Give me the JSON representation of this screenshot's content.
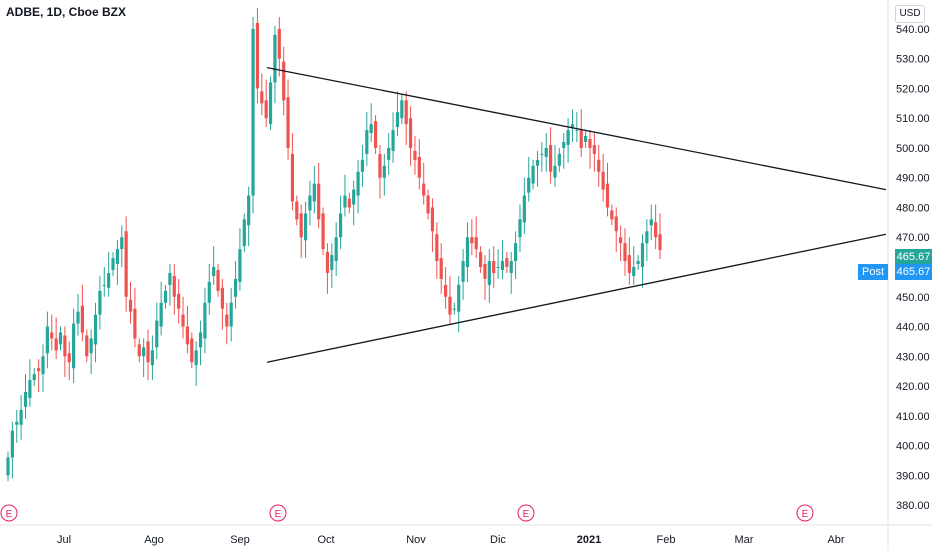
{
  "header": {
    "title": "ADBE, 1D, Cboe BZX"
  },
  "currency": "USD",
  "last_price": {
    "value": "465.67",
    "post_label": "Post",
    "post_value": "465.67",
    "color": "#26a69a",
    "post_color": "#2196f3"
  },
  "earnings_marker": "E",
  "colors": {
    "up": "#26a69a",
    "down": "#ef5350",
    "line": "#131722",
    "axis_text": "#131722",
    "earnings": "#e91e63"
  },
  "chart_data": {
    "type": "candlestick",
    "ylim": [
      375,
      545
    ],
    "y_ticks": [
      "540.00",
      "530.00",
      "520.00",
      "510.00",
      "500.00",
      "490.00",
      "480.00",
      "470.00",
      "460.00",
      "450.00",
      "440.00",
      "430.00",
      "420.00",
      "410.00",
      "400.00",
      "390.00",
      "380.00"
    ],
    "x_ticks": [
      "Jul",
      "Ago",
      "Sep",
      "Oct",
      "Nov",
      "Dic",
      "2021",
      "Feb",
      "Mar",
      "Abr"
    ],
    "earnings_after_tick": [
      "Jul",
      "Sep",
      "Dic",
      "Mar"
    ],
    "trendlines": [
      {
        "name": "upper",
        "from": {
          "x_tick": "Sep",
          "y": 527
        },
        "to": {
          "x_tick": "Abr",
          "y": 486
        }
      },
      {
        "name": "lower",
        "from": {
          "x_tick": "Sep",
          "y": 428
        },
        "to": {
          "x_tick": "Abr",
          "y": 471
        }
      }
    ],
    "close": [
      396,
      405,
      408,
      412,
      418,
      422,
      424,
      425,
      430,
      440,
      436,
      432,
      438,
      430,
      428,
      441,
      445,
      438,
      430,
      436,
      444,
      452,
      454,
      458,
      463,
      466,
      470,
      450,
      445,
      436,
      430,
      433,
      428,
      432,
      442,
      448,
      452,
      458,
      450,
      446,
      440,
      434,
      428,
      432,
      438,
      448,
      455,
      460,
      452,
      446,
      440,
      448,
      456,
      466,
      476,
      484,
      540,
      520,
      515,
      510,
      522,
      538,
      530,
      516,
      500,
      482,
      476,
      470,
      478,
      484,
      488,
      476,
      466,
      458,
      464,
      470,
      478,
      484,
      480,
      486,
      492,
      496,
      506,
      508,
      500,
      490,
      494,
      500,
      506,
      512,
      516,
      508,
      500,
      496,
      490,
      484,
      478,
      472,
      462,
      456,
      450,
      444,
      446,
      454,
      462,
      470,
      468,
      466,
      460,
      456,
      462,
      458,
      460,
      462,
      460,
      462,
      468,
      476,
      484,
      490,
      494,
      496,
      498,
      500,
      492,
      494,
      498,
      502,
      506,
      508,
      506,
      500,
      504,
      500,
      498,
      492,
      486,
      480,
      476,
      472,
      468,
      462,
      458,
      460,
      462,
      468,
      472,
      476,
      470,
      465.67
    ]
  }
}
